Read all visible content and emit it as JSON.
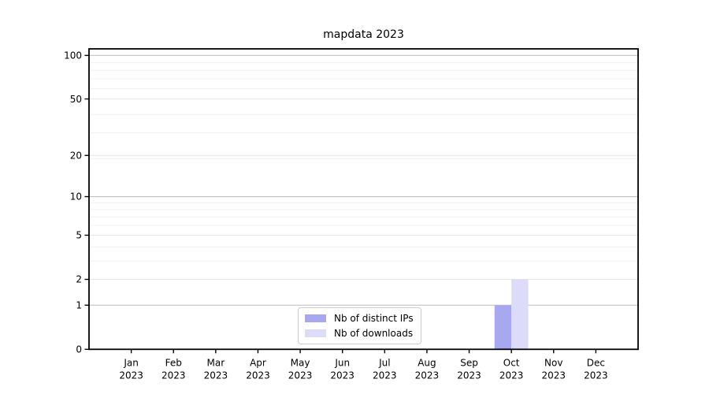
{
  "chart_data": {
    "type": "bar",
    "title": "mapdata 2023",
    "categories": [
      "Jan",
      "Feb",
      "Mar",
      "Apr",
      "May",
      "Jun",
      "Jul",
      "Aug",
      "Sep",
      "Oct",
      "Nov",
      "Dec"
    ],
    "year_label": "2023",
    "series": [
      {
        "name": "Nb of distinct IPs",
        "color": "#a8a8f0",
        "values": [
          0,
          0,
          0,
          0,
          0,
          0,
          0,
          0,
          0,
          1,
          0,
          0
        ]
      },
      {
        "name": "Nb of downloads",
        "color": "#dcdcf8",
        "values": [
          0,
          0,
          0,
          0,
          0,
          0,
          0,
          0,
          0,
          2,
          0,
          0
        ]
      }
    ],
    "xlabel": "",
    "ylabel": "",
    "y_axis": {
      "scale": "log1p",
      "tick_labels": [
        0,
        1,
        2,
        5,
        10,
        20,
        50,
        100
      ],
      "power_gridlines": [
        1,
        10,
        100
      ],
      "labeled_gridlines": [
        2,
        5,
        20,
        50
      ],
      "minor_gridlines": [
        3,
        4,
        6,
        7,
        8,
        9,
        19,
        29,
        39,
        59,
        69,
        79,
        89
      ],
      "range": [
        0,
        111
      ]
    },
    "grid": true,
    "legend_position": "lower center"
  },
  "colors": {
    "background": "#ffffff",
    "spine": "#000000",
    "text": "#000000",
    "power_grid": "#c2c2c2",
    "labeled_grid": "#e4e4e4",
    "minor_grid": "#f0f0f0",
    "legend_border": "#cccccc"
  }
}
